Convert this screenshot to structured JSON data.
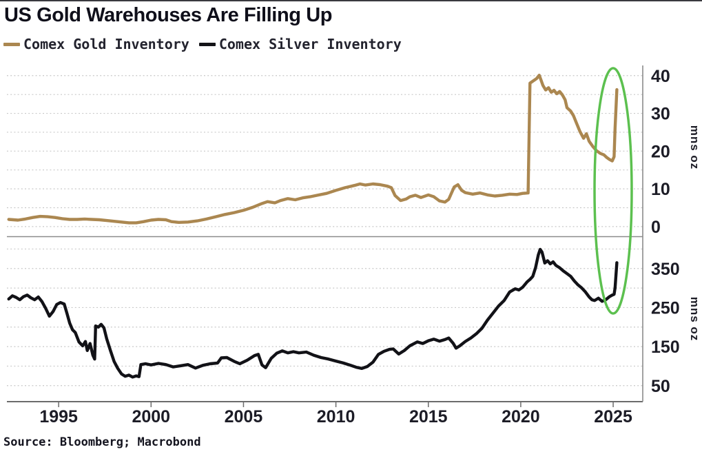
{
  "title": "US Gold Warehouses Are Filling Up",
  "source": "Source: Bloomberg; Macrobond",
  "legend": [
    {
      "label": "Comex Gold Inventory",
      "color": "#ab8750"
    },
    {
      "label": "Comex Silver Inventory",
      "color": "#141418"
    }
  ],
  "colors": {
    "gold_line": "#ab8750",
    "silver_line": "#121217",
    "highlight_green": "#5cc04f",
    "grid": "#c8c8c8",
    "axis": "#6b6b6b",
    "divider": "#8a8a8a",
    "text": "#1c1c26"
  },
  "annotation": {
    "shape": "ellipse",
    "meaning": "highlights the early-2025 surge in both gold and silver Comex inventories",
    "color": "#5cc04f"
  },
  "chart_data": [
    {
      "type": "line",
      "panel": "top",
      "title": "Comex Gold Inventory",
      "ylabel": "mns oz",
      "xlabel": "",
      "xlim": [
        1992.2,
        2026.6
      ],
      "ylim": [
        -2.4,
        42.7
      ],
      "yticks": [
        0,
        10,
        20,
        30,
        40
      ],
      "gridlines": [
        0,
        5,
        10,
        15,
        20,
        25,
        30,
        35,
        40
      ],
      "grid": "dashed",
      "legend_position": "top-left",
      "series": [
        {
          "name": "Comex Gold Inventory",
          "color": "#ab8750",
          "points": [
            [
              1992.3,
              1.9
            ],
            [
              1992.8,
              1.7
            ],
            [
              1993.2,
              2.0
            ],
            [
              1993.6,
              2.4
            ],
            [
              1994.0,
              2.7
            ],
            [
              1994.4,
              2.6
            ],
            [
              1994.8,
              2.4
            ],
            [
              1995.2,
              2.1
            ],
            [
              1995.6,
              1.9
            ],
            [
              1996.0,
              1.9
            ],
            [
              1996.4,
              2.0
            ],
            [
              1996.8,
              1.9
            ],
            [
              1997.2,
              1.8
            ],
            [
              1997.6,
              1.6
            ],
            [
              1998.0,
              1.4
            ],
            [
              1998.4,
              1.2
            ],
            [
              1998.8,
              1.0
            ],
            [
              1999.2,
              1.0
            ],
            [
              1999.6,
              1.3
            ],
            [
              2000.0,
              1.7
            ],
            [
              2000.4,
              1.9
            ],
            [
              2000.8,
              1.8
            ],
            [
              2001.1,
              1.3
            ],
            [
              2001.5,
              1.1
            ],
            [
              2002.0,
              1.2
            ],
            [
              2002.5,
              1.5
            ],
            [
              2003.0,
              2.0
            ],
            [
              2003.5,
              2.6
            ],
            [
              2004.0,
              3.2
            ],
            [
              2004.5,
              3.7
            ],
            [
              2005.0,
              4.3
            ],
            [
              2005.5,
              5.1
            ],
            [
              2006.0,
              6.1
            ],
            [
              2006.3,
              6.6
            ],
            [
              2006.7,
              6.3
            ],
            [
              2007.0,
              6.9
            ],
            [
              2007.4,
              7.4
            ],
            [
              2007.8,
              7.1
            ],
            [
              2008.2,
              7.6
            ],
            [
              2008.6,
              7.9
            ],
            [
              2009.0,
              8.3
            ],
            [
              2009.5,
              8.8
            ],
            [
              2010.0,
              9.6
            ],
            [
              2010.5,
              10.3
            ],
            [
              2011.0,
              10.9
            ],
            [
              2011.3,
              11.3
            ],
            [
              2011.6,
              11.0
            ],
            [
              2012.0,
              11.3
            ],
            [
              2012.4,
              11.1
            ],
            [
              2012.8,
              10.7
            ],
            [
              2013.0,
              10.3
            ],
            [
              2013.2,
              8.2
            ],
            [
              2013.5,
              6.9
            ],
            [
              2013.8,
              7.3
            ],
            [
              2014.0,
              7.9
            ],
            [
              2014.3,
              8.3
            ],
            [
              2014.6,
              7.7
            ],
            [
              2015.0,
              8.4
            ],
            [
              2015.3,
              7.9
            ],
            [
              2015.6,
              6.8
            ],
            [
              2015.9,
              6.5
            ],
            [
              2016.1,
              7.2
            ],
            [
              2016.4,
              10.5
            ],
            [
              2016.6,
              11.1
            ],
            [
              2016.8,
              9.6
            ],
            [
              2017.0,
              9.0
            ],
            [
              2017.4,
              8.6
            ],
            [
              2017.8,
              8.9
            ],
            [
              2018.2,
              8.4
            ],
            [
              2018.6,
              8.1
            ],
            [
              2019.0,
              8.3
            ],
            [
              2019.4,
              8.6
            ],
            [
              2019.8,
              8.5
            ],
            [
              2020.1,
              8.8
            ],
            [
              2020.4,
              8.9
            ],
            [
              2020.5,
              38.0
            ],
            [
              2020.7,
              38.7
            ],
            [
              2020.85,
              39.2
            ],
            [
              2021.0,
              40.1
            ],
            [
              2021.1,
              38.8
            ],
            [
              2021.2,
              37.4
            ],
            [
              2021.35,
              36.2
            ],
            [
              2021.5,
              36.8
            ],
            [
              2021.65,
              35.6
            ],
            [
              2021.8,
              36.1
            ],
            [
              2021.95,
              35.2
            ],
            [
              2022.1,
              35.8
            ],
            [
              2022.25,
              34.9
            ],
            [
              2022.4,
              33.6
            ],
            [
              2022.5,
              31.5
            ],
            [
              2022.7,
              30.6
            ],
            [
              2022.85,
              29.4
            ],
            [
              2023.0,
              27.6
            ],
            [
              2023.2,
              25.2
            ],
            [
              2023.4,
              23.4
            ],
            [
              2023.55,
              24.6
            ],
            [
              2023.7,
              22.6
            ],
            [
              2023.9,
              21.2
            ],
            [
              2024.1,
              20.1
            ],
            [
              2024.3,
              19.4
            ],
            [
              2024.5,
              19.0
            ],
            [
              2024.65,
              18.3
            ],
            [
              2024.8,
              17.8
            ],
            [
              2024.95,
              17.4
            ],
            [
              2025.05,
              18.5
            ],
            [
              2025.1,
              26.0
            ],
            [
              2025.2,
              36.3
            ]
          ]
        }
      ]
    },
    {
      "type": "line",
      "panel": "bottom",
      "title": "Comex Silver Inventory",
      "ylabel": "mns oz",
      "xlabel": "",
      "xlim": [
        1992.2,
        2026.6
      ],
      "ylim": [
        9,
        429
      ],
      "yticks": [
        50,
        150,
        250,
        350
      ],
      "gridlines": [
        50,
        100,
        150,
        200,
        250,
        300,
        350,
        400
      ],
      "xticks": [
        1995,
        2000,
        2005,
        2010,
        2015,
        2020,
        2025
      ],
      "grid": "dashed",
      "legend_position": "top-left",
      "series": [
        {
          "name": "Comex Silver Inventory",
          "color": "#121217",
          "points": [
            [
              1992.3,
              272
            ],
            [
              1992.5,
              280
            ],
            [
              1992.7,
              276
            ],
            [
              1992.9,
              270
            ],
            [
              1993.1,
              278
            ],
            [
              1993.3,
              282
            ],
            [
              1993.5,
              275
            ],
            [
              1993.7,
              270
            ],
            [
              1993.9,
              277
            ],
            [
              1994.1,
              265
            ],
            [
              1994.3,
              248
            ],
            [
              1994.5,
              228
            ],
            [
              1994.7,
              240
            ],
            [
              1994.9,
              258
            ],
            [
              1995.1,
              263
            ],
            [
              1995.3,
              259
            ],
            [
              1995.45,
              235
            ],
            [
              1995.6,
              210
            ],
            [
              1995.75,
              193
            ],
            [
              1995.9,
              186
            ],
            [
              1996.1,
              162
            ],
            [
              1996.3,
              152
            ],
            [
              1996.45,
              163
            ],
            [
              1996.55,
              140
            ],
            [
              1996.7,
              158
            ],
            [
              1996.85,
              128
            ],
            [
              1996.95,
              118
            ],
            [
              1997.0,
              203
            ],
            [
              1997.15,
              200
            ],
            [
              1997.3,
              207
            ],
            [
              1997.45,
              198
            ],
            [
              1997.6,
              170
            ],
            [
              1997.8,
              140
            ],
            [
              1998.0,
              112
            ],
            [
              1998.2,
              94
            ],
            [
              1998.4,
              80
            ],
            [
              1998.6,
              74
            ],
            [
              1998.8,
              77
            ],
            [
              1999.0,
              72
            ],
            [
              1999.2,
              75
            ],
            [
              1999.35,
              73
            ],
            [
              1999.45,
              104
            ],
            [
              1999.7,
              106
            ],
            [
              2000.0,
              103
            ],
            [
              2000.4,
              107
            ],
            [
              2000.8,
              104
            ],
            [
              2001.2,
              98
            ],
            [
              2001.6,
              101
            ],
            [
              2002.0,
              104
            ],
            [
              2002.4,
              95
            ],
            [
              2002.8,
              102
            ],
            [
              2003.2,
              106
            ],
            [
              2003.6,
              108
            ],
            [
              2003.8,
              121
            ],
            [
              2004.1,
              122
            ],
            [
              2004.5,
              112
            ],
            [
              2004.8,
              106
            ],
            [
              2005.2,
              115
            ],
            [
              2005.6,
              127
            ],
            [
              2005.8,
              130
            ],
            [
              2006.0,
              103
            ],
            [
              2006.2,
              96
            ],
            [
              2006.5,
              120
            ],
            [
              2006.8,
              133
            ],
            [
              2007.1,
              139
            ],
            [
              2007.4,
              134
            ],
            [
              2007.7,
              137
            ],
            [
              2008.0,
              134
            ],
            [
              2008.4,
              136
            ],
            [
              2008.8,
              128
            ],
            [
              2009.2,
              122
            ],
            [
              2009.6,
              118
            ],
            [
              2010.0,
              113
            ],
            [
              2010.4,
              108
            ],
            [
              2010.8,
              102
            ],
            [
              2011.1,
              97
            ],
            [
              2011.4,
              94
            ],
            [
              2011.7,
              99
            ],
            [
              2012.0,
              110
            ],
            [
              2012.3,
              130
            ],
            [
              2012.6,
              138
            ],
            [
              2012.9,
              143
            ],
            [
              2013.1,
              144
            ],
            [
              2013.4,
              131
            ],
            [
              2013.7,
              140
            ],
            [
              2014.0,
              152
            ],
            [
              2014.4,
              162
            ],
            [
              2014.7,
              158
            ],
            [
              2015.0,
              165
            ],
            [
              2015.3,
              169
            ],
            [
              2015.6,
              164
            ],
            [
              2015.9,
              168
            ],
            [
              2016.1,
              172
            ],
            [
              2016.35,
              158
            ],
            [
              2016.5,
              146
            ],
            [
              2016.7,
              152
            ],
            [
              2017.0,
              163
            ],
            [
              2017.3,
              172
            ],
            [
              2017.6,
              183
            ],
            [
              2017.9,
              197
            ],
            [
              2018.2,
              218
            ],
            [
              2018.5,
              236
            ],
            [
              2018.8,
              254
            ],
            [
              2019.1,
              268
            ],
            [
              2019.4,
              290
            ],
            [
              2019.7,
              298
            ],
            [
              2019.9,
              295
            ],
            [
              2020.1,
              302
            ],
            [
              2020.35,
              316
            ],
            [
              2020.5,
              322
            ],
            [
              2020.65,
              330
            ],
            [
              2020.8,
              352
            ],
            [
              2020.95,
              385
            ],
            [
              2021.05,
              399
            ],
            [
              2021.15,
              392
            ],
            [
              2021.3,
              364
            ],
            [
              2021.45,
              370
            ],
            [
              2021.6,
              362
            ],
            [
              2021.75,
              367
            ],
            [
              2021.9,
              358
            ],
            [
              2022.1,
              352
            ],
            [
              2022.3,
              344
            ],
            [
              2022.5,
              337
            ],
            [
              2022.7,
              330
            ],
            [
              2022.9,
              318
            ],
            [
              2023.1,
              308
            ],
            [
              2023.3,
              300
            ],
            [
              2023.5,
              290
            ],
            [
              2023.7,
              277
            ],
            [
              2023.85,
              270
            ],
            [
              2024.0,
              268
            ],
            [
              2024.2,
              274
            ],
            [
              2024.4,
              266
            ],
            [
              2024.6,
              270
            ],
            [
              2024.8,
              278
            ],
            [
              2024.95,
              282
            ],
            [
              2025.05,
              284
            ],
            [
              2025.1,
              300
            ],
            [
              2025.2,
              365
            ]
          ]
        }
      ]
    }
  ]
}
